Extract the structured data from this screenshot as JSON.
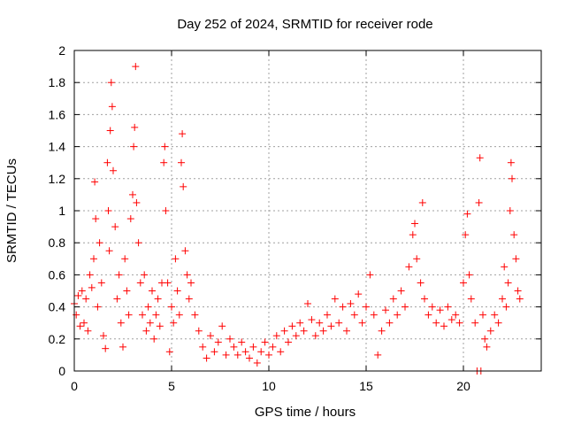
{
  "chart_data": {
    "type": "scatter",
    "title": "Day 252 of 2024, SRMTID for receiver rode",
    "xlabel": "GPS time / hours",
    "ylabel": "SRMTID / TECUs",
    "xlim": [
      0,
      24
    ],
    "ylim": [
      0,
      2
    ],
    "x_ticks": [
      0,
      5,
      10,
      15,
      20
    ],
    "x_tick_labels": [
      "0",
      "5",
      "10",
      "15",
      "20"
    ],
    "y_ticks": [
      0,
      0.2,
      0.4,
      0.6,
      0.8,
      1,
      1.2,
      1.4,
      1.6,
      1.8,
      2
    ],
    "y_tick_labels": [
      "0",
      "0.2",
      "0.4",
      "0.6",
      "0.8",
      "1",
      "1.2",
      "1.4",
      "1.6",
      "1.8",
      "2"
    ],
    "grid": true,
    "marker": "+",
    "series_color": "#ff0000",
    "series": [
      {
        "name": "SRMTID",
        "points": [
          [
            0.0,
            0.42
          ],
          [
            0.1,
            0.35
          ],
          [
            0.2,
            0.47
          ],
          [
            0.3,
            0.28
          ],
          [
            0.4,
            0.5
          ],
          [
            0.5,
            0.3
          ],
          [
            0.6,
            0.45
          ],
          [
            0.7,
            0.25
          ],
          [
            0.8,
            0.6
          ],
          [
            0.9,
            0.52
          ],
          [
            1.0,
            0.7
          ],
          [
            1.05,
            1.18
          ],
          [
            1.1,
            0.95
          ],
          [
            1.2,
            0.4
          ],
          [
            1.3,
            0.8
          ],
          [
            1.4,
            0.55
          ],
          [
            1.5,
            0.22
          ],
          [
            1.6,
            0.14
          ],
          [
            1.7,
            1.3
          ],
          [
            1.75,
            1.0
          ],
          [
            1.8,
            0.75
          ],
          [
            1.85,
            1.5
          ],
          [
            1.9,
            1.8
          ],
          [
            1.95,
            1.65
          ],
          [
            2.0,
            1.25
          ],
          [
            2.1,
            0.9
          ],
          [
            2.2,
            0.45
          ],
          [
            2.3,
            0.6
          ],
          [
            2.4,
            0.3
          ],
          [
            2.5,
            0.15
          ],
          [
            2.6,
            0.7
          ],
          [
            2.7,
            0.5
          ],
          [
            2.8,
            0.35
          ],
          [
            2.9,
            0.95
          ],
          [
            3.0,
            1.1
          ],
          [
            3.05,
            1.4
          ],
          [
            3.1,
            1.52
          ],
          [
            3.15,
            1.9
          ],
          [
            3.2,
            1.05
          ],
          [
            3.3,
            0.8
          ],
          [
            3.4,
            0.55
          ],
          [
            3.5,
            0.35
          ],
          [
            3.6,
            0.6
          ],
          [
            3.7,
            0.25
          ],
          [
            3.8,
            0.4
          ],
          [
            3.9,
            0.3
          ],
          [
            4.0,
            0.5
          ],
          [
            4.1,
            0.2
          ],
          [
            4.2,
            0.35
          ],
          [
            4.3,
            0.45
          ],
          [
            4.4,
            0.28
          ],
          [
            4.5,
            0.55
          ],
          [
            4.6,
            1.3
          ],
          [
            4.65,
            1.4
          ],
          [
            4.7,
            1.0
          ],
          [
            4.8,
            0.55
          ],
          [
            4.9,
            0.12
          ],
          [
            5.0,
            0.4
          ],
          [
            5.1,
            0.3
          ],
          [
            5.2,
            0.7
          ],
          [
            5.3,
            0.5
          ],
          [
            5.4,
            0.35
          ],
          [
            5.5,
            1.3
          ],
          [
            5.55,
            1.48
          ],
          [
            5.6,
            1.15
          ],
          [
            5.7,
            0.75
          ],
          [
            5.8,
            0.6
          ],
          [
            5.9,
            0.45
          ],
          [
            6.0,
            0.55
          ],
          [
            6.2,
            0.35
          ],
          [
            6.4,
            0.25
          ],
          [
            6.6,
            0.15
          ],
          [
            6.8,
            0.08
          ],
          [
            7.0,
            0.22
          ],
          [
            7.2,
            0.12
          ],
          [
            7.4,
            0.18
          ],
          [
            7.6,
            0.28
          ],
          [
            7.8,
            0.1
          ],
          [
            8.0,
            0.2
          ],
          [
            8.2,
            0.15
          ],
          [
            8.4,
            0.1
          ],
          [
            8.6,
            0.18
          ],
          [
            8.8,
            0.12
          ],
          [
            9.0,
            0.08
          ],
          [
            9.2,
            0.15
          ],
          [
            9.4,
            0.05
          ],
          [
            9.6,
            0.12
          ],
          [
            9.8,
            0.18
          ],
          [
            10.0,
            0.1
          ],
          [
            10.2,
            0.15
          ],
          [
            10.4,
            0.22
          ],
          [
            10.6,
            0.12
          ],
          [
            10.8,
            0.25
          ],
          [
            11.0,
            0.18
          ],
          [
            11.2,
            0.28
          ],
          [
            11.4,
            0.22
          ],
          [
            11.6,
            0.3
          ],
          [
            11.8,
            0.25
          ],
          [
            12.0,
            0.42
          ],
          [
            12.2,
            0.32
          ],
          [
            12.4,
            0.22
          ],
          [
            12.6,
            0.3
          ],
          [
            12.8,
            0.25
          ],
          [
            13.0,
            0.35
          ],
          [
            13.2,
            0.28
          ],
          [
            13.4,
            0.45
          ],
          [
            13.6,
            0.3
          ],
          [
            13.8,
            0.4
          ],
          [
            14.0,
            0.25
          ],
          [
            14.2,
            0.42
          ],
          [
            14.4,
            0.35
          ],
          [
            14.6,
            0.48
          ],
          [
            14.8,
            0.3
          ],
          [
            15.0,
            0.4
          ],
          [
            15.2,
            0.6
          ],
          [
            15.4,
            0.35
          ],
          [
            15.6,
            0.1
          ],
          [
            15.8,
            0.25
          ],
          [
            16.0,
            0.38
          ],
          [
            16.2,
            0.3
          ],
          [
            16.4,
            0.45
          ],
          [
            16.6,
            0.35
          ],
          [
            16.8,
            0.5
          ],
          [
            17.0,
            0.4
          ],
          [
            17.2,
            0.65
          ],
          [
            17.4,
            0.85
          ],
          [
            17.5,
            0.92
          ],
          [
            17.6,
            0.7
          ],
          [
            17.8,
            0.55
          ],
          [
            17.9,
            1.05
          ],
          [
            18.0,
            0.45
          ],
          [
            18.2,
            0.35
          ],
          [
            18.4,
            0.4
          ],
          [
            18.6,
            0.3
          ],
          [
            18.8,
            0.38
          ],
          [
            19.0,
            0.28
          ],
          [
            19.2,
            0.4
          ],
          [
            19.4,
            0.32
          ],
          [
            19.6,
            0.35
          ],
          [
            19.8,
            0.3
          ],
          [
            20.0,
            0.55
          ],
          [
            20.1,
            0.85
          ],
          [
            20.2,
            0.98
          ],
          [
            20.3,
            0.6
          ],
          [
            20.4,
            0.45
          ],
          [
            20.6,
            0.3
          ],
          [
            20.7,
            0.0
          ],
          [
            20.8,
            1.05
          ],
          [
            20.85,
            1.33
          ],
          [
            20.9,
            0.0
          ],
          [
            21.0,
            0.35
          ],
          [
            21.1,
            0.2
          ],
          [
            21.2,
            0.15
          ],
          [
            21.4,
            0.25
          ],
          [
            21.6,
            0.35
          ],
          [
            21.8,
            0.3
          ],
          [
            22.0,
            0.45
          ],
          [
            22.1,
            0.65
          ],
          [
            22.2,
            0.4
          ],
          [
            22.3,
            0.55
          ],
          [
            22.4,
            1.0
          ],
          [
            22.45,
            1.3
          ],
          [
            22.5,
            1.2
          ],
          [
            22.6,
            0.85
          ],
          [
            22.7,
            0.7
          ],
          [
            22.8,
            0.5
          ],
          [
            22.9,
            0.45
          ]
        ]
      }
    ]
  }
}
